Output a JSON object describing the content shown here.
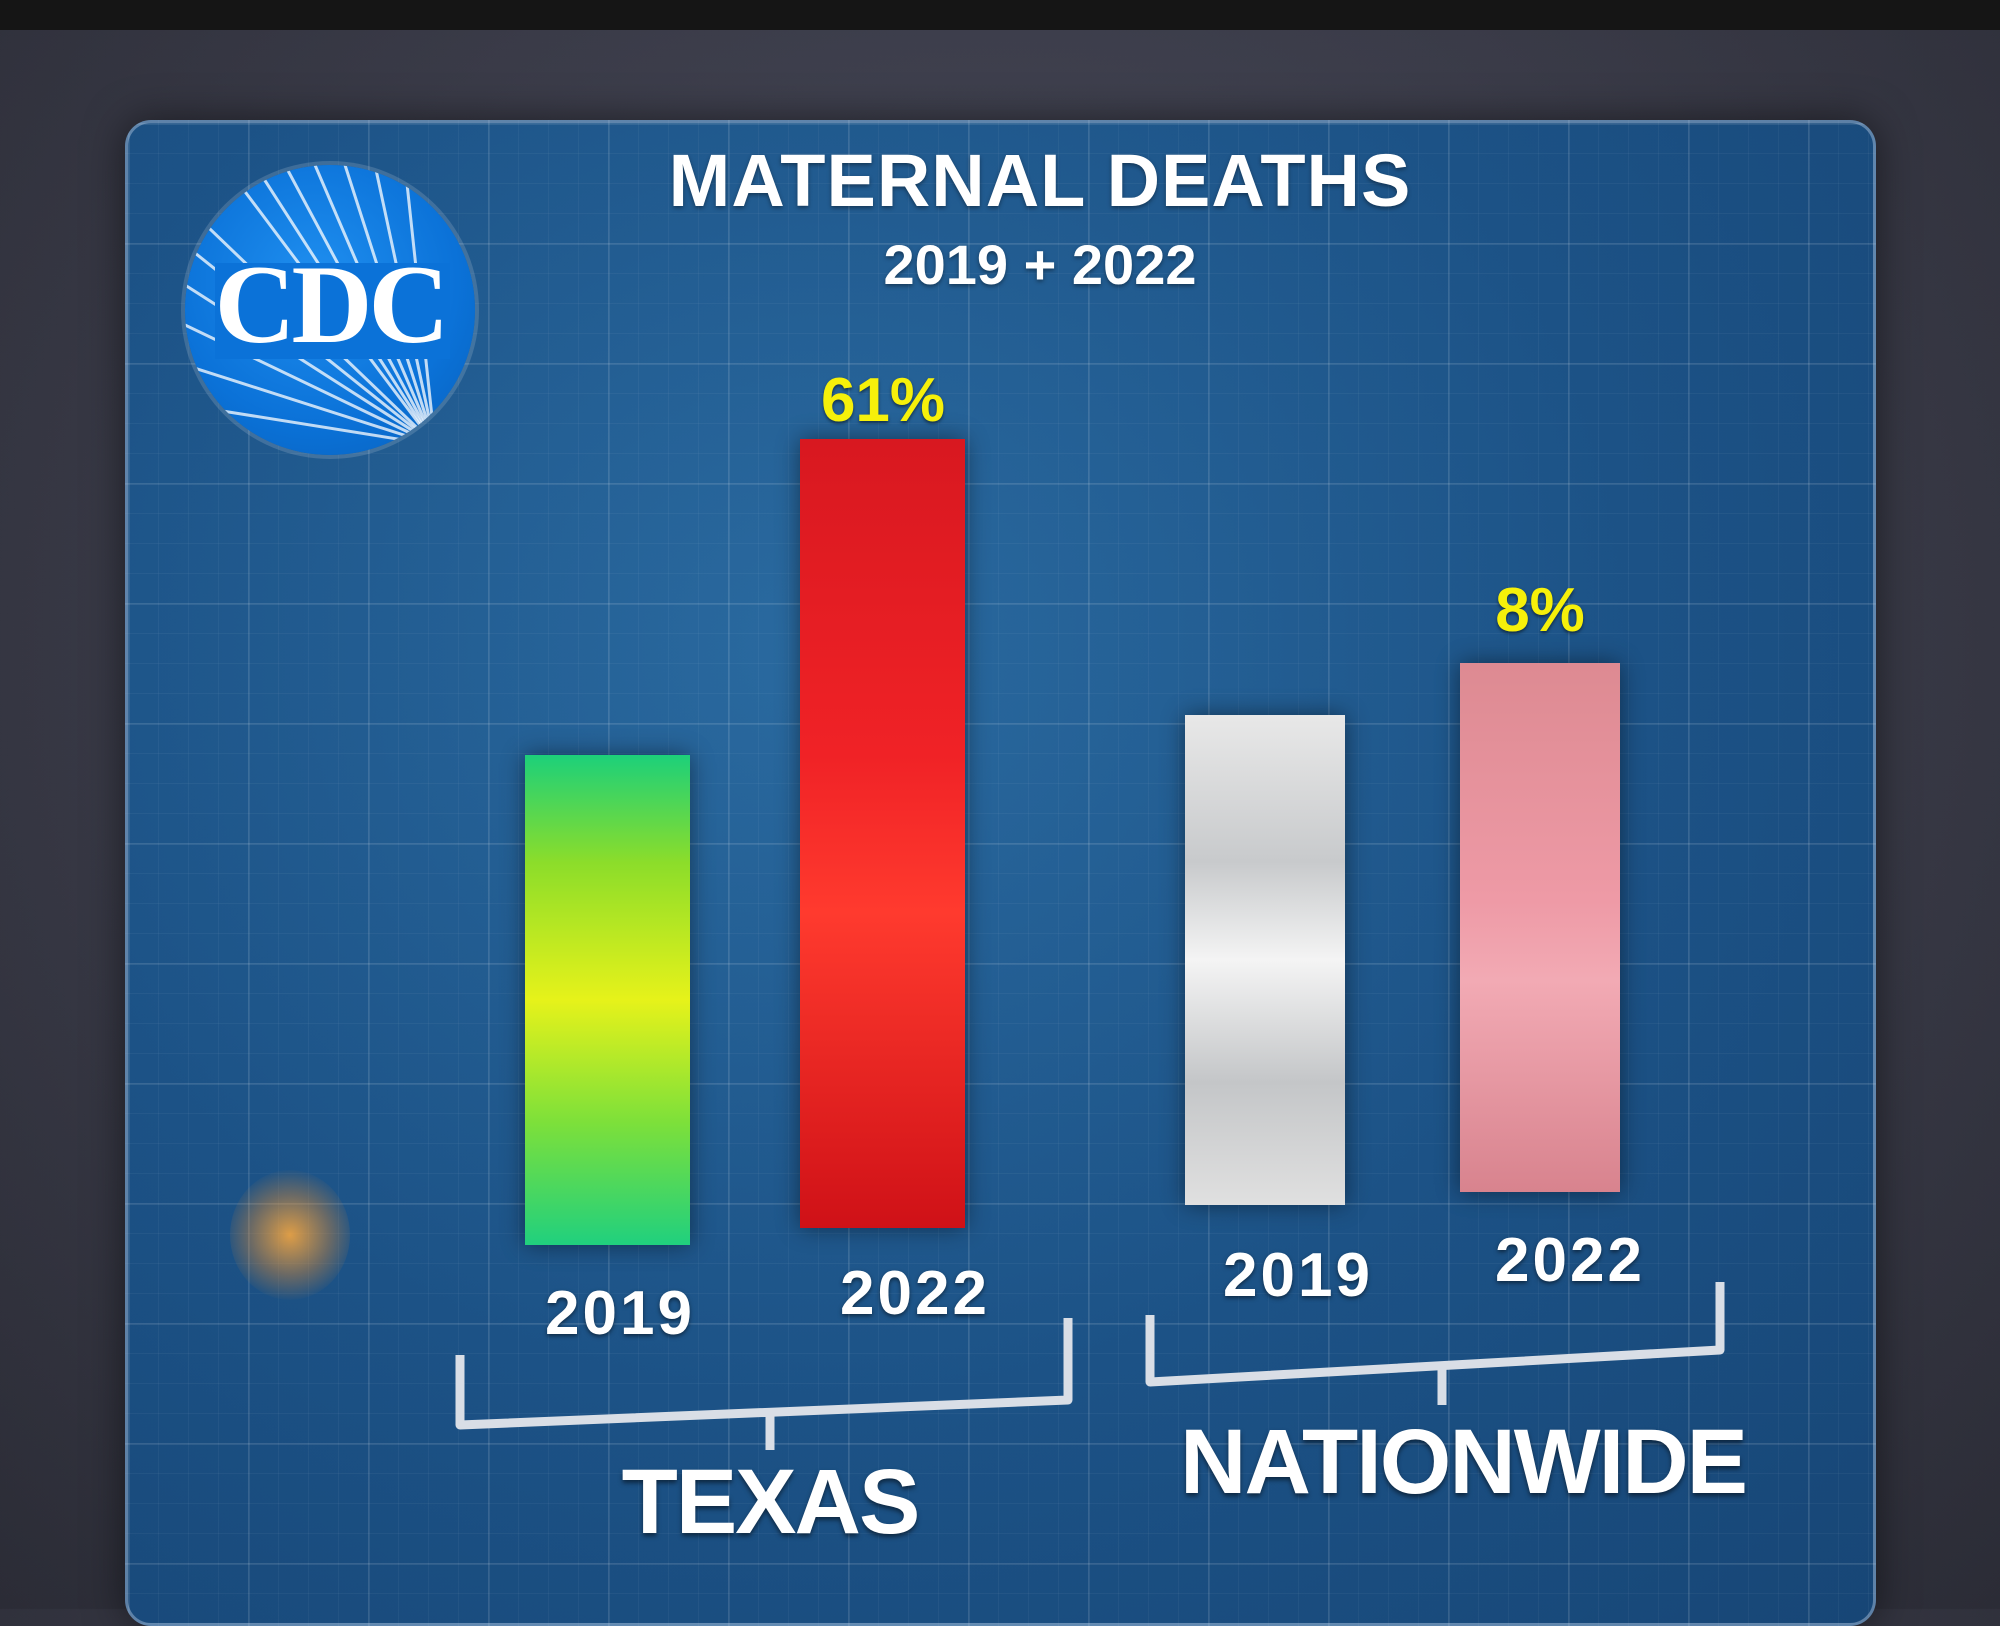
{
  "logo": {
    "text": "CDC"
  },
  "chart_data": {
    "type": "bar",
    "title": "MATERNAL DEATHS",
    "subtitle": "2019 + 2022",
    "groups": [
      {
        "name": "TEXAS",
        "bars": [
          {
            "category": "2019",
            "value": 1.0,
            "label": ""
          },
          {
            "category": "2022",
            "value": 1.61,
            "label": "61%"
          }
        ]
      },
      {
        "name": "NATIONWIDE",
        "bars": [
          {
            "category": "2019",
            "value": 1.0,
            "label": ""
          },
          {
            "category": "2022",
            "value": 1.08,
            "label": "8%"
          }
        ]
      }
    ],
    "colors": {
      "texas_2019": "#7de03a",
      "texas_2022": "#e81c22",
      "nationwide_2019": "#dcdcdc",
      "nationwide_2022": "#e8939e",
      "percent_label": "#f6f00a"
    }
  }
}
